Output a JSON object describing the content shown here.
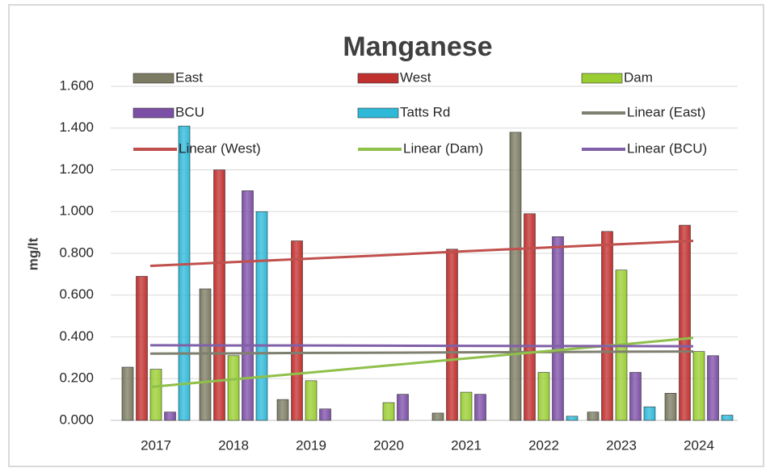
{
  "chart_data": {
    "type": "bar",
    "title": "Manganese",
    "y_label": "mg/lt",
    "categories": [
      "2017",
      "2018",
      "2019",
      "2020",
      "2021",
      "2022",
      "2023",
      "2024"
    ],
    "series": [
      {
        "name": "East",
        "color": "#7b7b63",
        "values": [
          0.255,
          0.63,
          0.1,
          null,
          0.035,
          1.38,
          0.04,
          0.13
        ]
      },
      {
        "name": "West",
        "color": "#c0302e",
        "values": [
          0.69,
          1.2,
          0.86,
          null,
          0.82,
          0.99,
          0.905,
          0.935
        ]
      },
      {
        "name": "Dam",
        "color": "#9acd32",
        "values": [
          0.245,
          0.31,
          0.19,
          0.085,
          0.135,
          0.23,
          0.72,
          0.33
        ]
      },
      {
        "name": "BCU",
        "color": "#7c4fa6",
        "values": [
          0.04,
          1.1,
          0.055,
          0.125,
          0.125,
          0.88,
          0.23,
          0.31
        ]
      },
      {
        "name": "Tatts Rd",
        "color": "#2fb8d8",
        "values": [
          1.41,
          1.0,
          null,
          null,
          null,
          0.02,
          0.065,
          0.025
        ]
      }
    ],
    "trendlines": [
      {
        "name": "Linear (East)",
        "color": "#7f7f6f",
        "values": [
          0.32,
          0.321,
          0.323,
          0.324,
          0.326,
          0.327,
          0.329,
          0.33
        ]
      },
      {
        "name": "Linear (West)",
        "color": "#c0504d",
        "values": [
          0.74,
          0.757,
          0.774,
          0.791,
          0.809,
          0.826,
          0.843,
          0.86
        ]
      },
      {
        "name": "Linear (Dam)",
        "color": "#8fc04a",
        "values": [
          0.16,
          0.194,
          0.227,
          0.261,
          0.294,
          0.328,
          0.361,
          0.395
        ]
      },
      {
        "name": "Linear (BCU)",
        "color": "#8060a8",
        "values": [
          0.36,
          0.359,
          0.359,
          0.358,
          0.357,
          0.356,
          0.356,
          0.355
        ]
      }
    ],
    "ylim": [
      0,
      1.6
    ],
    "yticks": [
      {
        "value": 0,
        "label": "0.000"
      },
      {
        "value": 0.2,
        "label": "0.200"
      },
      {
        "value": 0.4,
        "label": "0.400"
      },
      {
        "value": 0.6,
        "label": "0.600"
      },
      {
        "value": 0.8,
        "label": "0.800"
      },
      {
        "value": 1.0,
        "label": "1.000"
      },
      {
        "value": 1.2,
        "label": "1.200"
      },
      {
        "value": 1.4,
        "label": "1.400"
      },
      {
        "value": 1.6,
        "label": "1.600"
      }
    ],
    "grid": true
  }
}
